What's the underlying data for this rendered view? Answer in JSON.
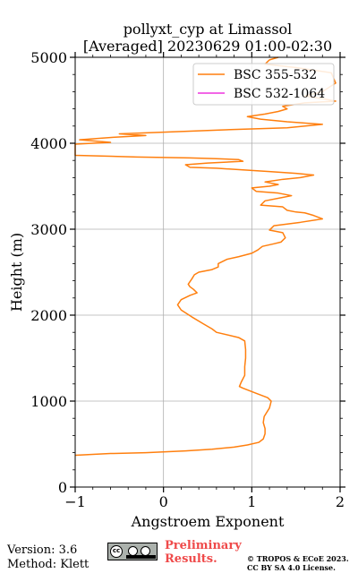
{
  "chart_data": {
    "type": "line",
    "title": "pollyxt_cyp at Limassol",
    "subtitle": "[Averaged] 20230629 01:00-02:30",
    "xlabel": "Angstroem Exponent",
    "ylabel": "Height (m)",
    "xlim": [
      -1,
      2
    ],
    "ylim": [
      0,
      5000
    ],
    "xticks": [
      -1,
      0,
      1,
      2
    ],
    "xtick_labels": [
      "−1",
      "0",
      "1",
      "2"
    ],
    "yticks": [
      0,
      1000,
      2000,
      3000,
      4000,
      5000
    ],
    "grid": true,
    "legend_position": "top-right",
    "series": [
      {
        "name": "BSC 355-532",
        "color": "#ff7f0e",
        "points": [
          [
            -1.0,
            370
          ],
          [
            -0.6,
            390
          ],
          [
            -0.2,
            400
          ],
          [
            0.25,
            420
          ],
          [
            0.55,
            440
          ],
          [
            0.8,
            465
          ],
          [
            0.95,
            490
          ],
          [
            1.08,
            520
          ],
          [
            1.13,
            560
          ],
          [
            1.15,
            620
          ],
          [
            1.15,
            680
          ],
          [
            1.13,
            750
          ],
          [
            1.14,
            820
          ],
          [
            1.2,
            920
          ],
          [
            1.22,
            1000
          ],
          [
            1.18,
            1040
          ],
          [
            1.05,
            1090
          ],
          [
            0.9,
            1150
          ],
          [
            0.86,
            1170
          ],
          [
            0.88,
            1220
          ],
          [
            0.92,
            1300
          ],
          [
            0.92,
            1400
          ],
          [
            0.93,
            1500
          ],
          [
            0.93,
            1600
          ],
          [
            0.92,
            1700
          ],
          [
            0.85,
            1740
          ],
          [
            0.6,
            1800
          ],
          [
            0.55,
            1840
          ],
          [
            0.45,
            1900
          ],
          [
            0.32,
            1980
          ],
          [
            0.2,
            2060
          ],
          [
            0.16,
            2120
          ],
          [
            0.2,
            2180
          ],
          [
            0.3,
            2230
          ],
          [
            0.38,
            2260
          ],
          [
            0.34,
            2300
          ],
          [
            0.3,
            2330
          ],
          [
            0.28,
            2360
          ],
          [
            0.32,
            2420
          ],
          [
            0.35,
            2470
          ],
          [
            0.4,
            2500
          ],
          [
            0.55,
            2530
          ],
          [
            0.62,
            2560
          ],
          [
            0.62,
            2600
          ],
          [
            0.72,
            2650
          ],
          [
            0.85,
            2680
          ],
          [
            1.0,
            2720
          ],
          [
            1.07,
            2760
          ],
          [
            1.12,
            2800
          ],
          [
            1.25,
            2830
          ],
          [
            1.33,
            2850
          ],
          [
            1.38,
            2900
          ],
          [
            1.35,
            2960
          ],
          [
            1.2,
            2990
          ],
          [
            1.25,
            3040
          ],
          [
            1.55,
            3080
          ],
          [
            1.8,
            3120
          ],
          [
            1.7,
            3160
          ],
          [
            1.6,
            3190
          ],
          [
            1.5,
            3200
          ],
          [
            1.4,
            3220
          ],
          [
            1.35,
            3260
          ],
          [
            1.1,
            3280
          ],
          [
            1.15,
            3330
          ],
          [
            1.35,
            3370
          ],
          [
            1.45,
            3390
          ],
          [
            1.3,
            3420
          ],
          [
            1.05,
            3440
          ],
          [
            1.0,
            3480
          ],
          [
            1.2,
            3500
          ],
          [
            1.3,
            3520
          ],
          [
            1.15,
            3550
          ],
          [
            1.35,
            3580
          ],
          [
            1.55,
            3600
          ],
          [
            1.7,
            3630
          ],
          [
            1.5,
            3650
          ],
          [
            1.2,
            3670
          ],
          [
            0.9,
            3690
          ],
          [
            0.6,
            3710
          ],
          [
            0.3,
            3720
          ],
          [
            0.25,
            3750
          ],
          [
            0.5,
            3770
          ],
          [
            0.9,
            3790
          ],
          [
            0.85,
            3810
          ],
          [
            0.6,
            3820
          ],
          [
            0.3,
            3830
          ],
          [
            -0.3,
            3840
          ],
          [
            -1.0,
            3860
          ],
          [
            -1.0,
            3990
          ],
          [
            -0.6,
            4010
          ],
          [
            -0.95,
            4040
          ],
          [
            -0.55,
            4070
          ],
          [
            -0.2,
            4090
          ],
          [
            -0.5,
            4110
          ],
          [
            0.3,
            4140
          ],
          [
            0.8,
            4160
          ],
          [
            1.4,
            4180
          ],
          [
            1.8,
            4220
          ],
          [
            1.4,
            4250
          ],
          [
            1.1,
            4280
          ],
          [
            0.95,
            4310
          ],
          [
            1.15,
            4340
          ],
          [
            1.3,
            4370
          ],
          [
            1.4,
            4400
          ],
          [
            1.35,
            4430
          ],
          [
            1.6,
            4470
          ],
          [
            1.95,
            4490
          ],
          [
            1.8,
            4520
          ],
          [
            1.6,
            4550
          ],
          [
            1.8,
            4600
          ],
          [
            1.95,
            4700
          ],
          [
            1.9,
            4820
          ],
          [
            1.5,
            4880
          ],
          [
            1.15,
            4920
          ],
          [
            1.2,
            4970
          ],
          [
            1.3,
            5000
          ]
        ]
      },
      {
        "name": "BSC 532-1064",
        "color": "#ee33dd",
        "points": []
      }
    ]
  },
  "footer": {
    "version": "Version: 3.6",
    "method": "Method: Klett",
    "preliminary_line1": "Preliminary",
    "preliminary_line2": "Results.",
    "copyright_line1": "© TROPOS & ECoE 2023.",
    "copyright_line2": "CC BY SA 4.0 License.",
    "license_badge_icon": "cc-by-sa-icon"
  }
}
